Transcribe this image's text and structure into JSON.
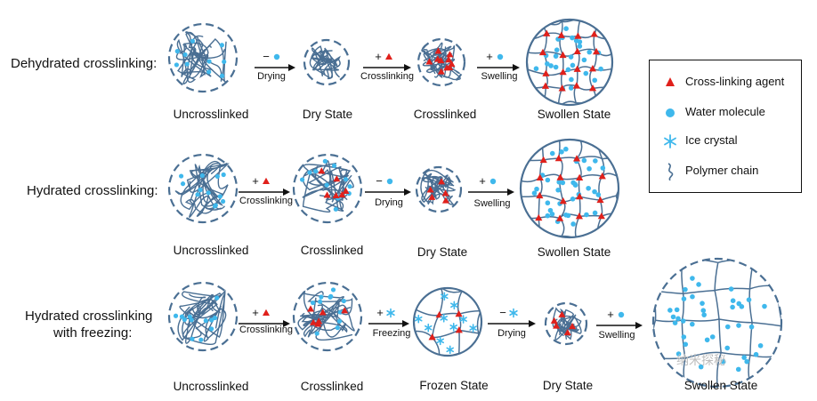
{
  "rows": [
    {
      "label": "Dehydrated crosslinking:",
      "states": [
        "Uncrosslinked",
        "Dry State",
        "Crosslinked",
        "Swollen State"
      ],
      "arrows": [
        {
          "sign": "−",
          "item": "water",
          "label": "Drying"
        },
        {
          "sign": "+",
          "item": "agent",
          "label": "Crosslinking"
        },
        {
          "sign": "+",
          "item": "water",
          "label": "Swelling"
        }
      ]
    },
    {
      "label": "Hydrated crosslinking:",
      "states": [
        "Uncrosslinked",
        "Crosslinked",
        "Dry State",
        "Swollen State"
      ],
      "arrows": [
        {
          "sign": "+",
          "item": "agent",
          "label": "Crosslinking"
        },
        {
          "sign": "−",
          "item": "water",
          "label": "Drying"
        },
        {
          "sign": "+",
          "item": "water",
          "label": "Swelling"
        }
      ]
    },
    {
      "label_lines": [
        "Hydrated crosslinking",
        "with freezing:"
      ],
      "states": [
        "Uncrosslinked",
        "Crosslinked",
        "Frozen State",
        "Dry State",
        "Swollen State"
      ],
      "arrows": [
        {
          "sign": "+",
          "item": "agent",
          "label": "Crosslinking"
        },
        {
          "sign": "+",
          "item": "ice",
          "label": "Freezing"
        },
        {
          "sign": "−",
          "item": "ice",
          "label": "Drying"
        },
        {
          "sign": "+",
          "item": "water",
          "label": "Swelling"
        }
      ]
    }
  ],
  "legend": [
    {
      "icon": "triangle-icon",
      "label": "Cross-linking agent"
    },
    {
      "icon": "water-drop-icon",
      "label": "Water molecule"
    },
    {
      "icon": "snowflake-icon",
      "label": "Ice crystal"
    },
    {
      "icon": "chain-icon",
      "label": "Polymer chain"
    }
  ],
  "watermark": "纳米探秘",
  "colors": {
    "chain": "#4a6f93",
    "water": "#3fb8ec",
    "agent": "#e0201b",
    "ice": "#3fb8ec",
    "text": "#111111"
  }
}
